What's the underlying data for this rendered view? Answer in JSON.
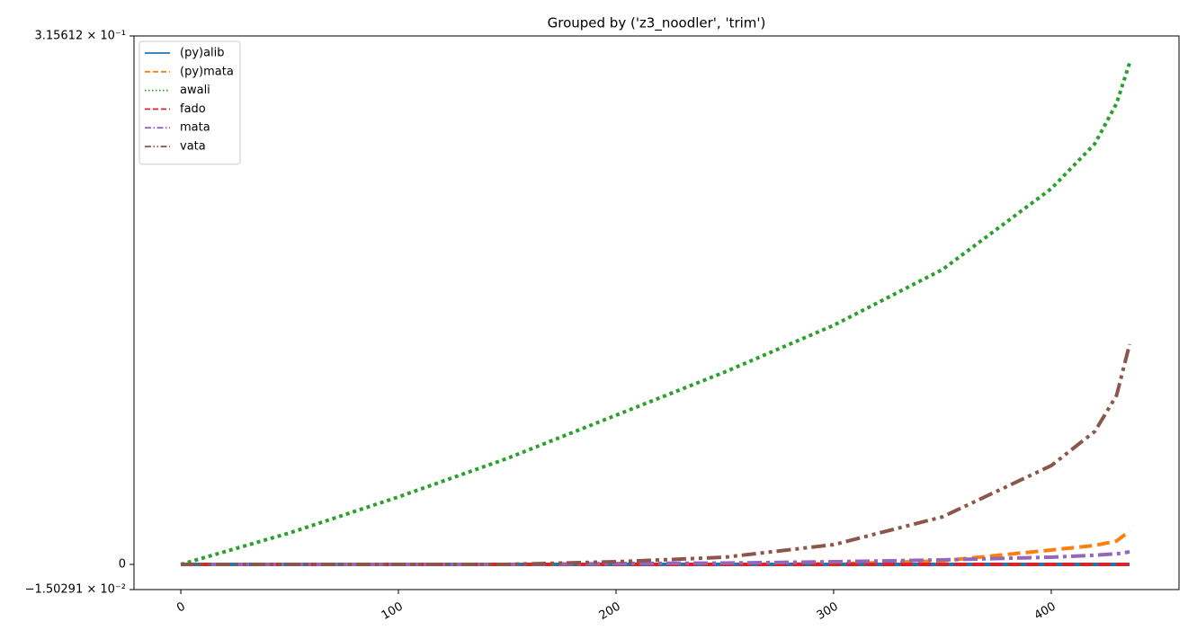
{
  "chart_data": {
    "type": "line",
    "title": "Grouped by ('z3_noodler', 'trim')",
    "x": [
      0,
      50,
      100,
      150,
      200,
      250,
      300,
      350,
      400,
      420,
      430,
      436
    ],
    "series": [
      {
        "name": "(py)alib",
        "color": "#1f77b4",
        "linestyle": "solid",
        "values": [
          0,
          0,
          0,
          0,
          0,
          0,
          0,
          0,
          0,
          0,
          0,
          0
        ]
      },
      {
        "name": "(py)mata",
        "color": "#ff7f0e",
        "linestyle": "dashed",
        "values": [
          0,
          0,
          0,
          0,
          0,
          0,
          0.0003,
          0.0021,
          0.0086,
          0.0113,
          0.014,
          0.0199
        ]
      },
      {
        "name": "awali",
        "color": "#2ca02c",
        "linestyle": "dotted",
        "values": [
          0,
          0.0188,
          0.0403,
          0.0633,
          0.0891,
          0.1149,
          0.1428,
          0.1761,
          0.2244,
          0.2512,
          0.2753,
          0.2995
        ]
      },
      {
        "name": "fado",
        "color": "#d62728",
        "linestyle": "dashed",
        "values": [
          0,
          0,
          0,
          0,
          0,
          0,
          0,
          0,
          0,
          0,
          0,
          0
        ]
      },
      {
        "name": "mata",
        "color": "#9467bd",
        "linestyle": "dashdot",
        "values": [
          0,
          0,
          0,
          0,
          0.0005,
          0.0008,
          0.0016,
          0.0027,
          0.0043,
          0.0055,
          0.0063,
          0.0075
        ]
      },
      {
        "name": "vata",
        "color": "#8c564b",
        "linestyle": "dashdotdot",
        "values": [
          0,
          0,
          0,
          0,
          0.0016,
          0.0043,
          0.0118,
          0.0284,
          0.059,
          0.0794,
          0.1009,
          0.1315
        ]
      }
    ],
    "xlim": [
      -21.5,
      458.7
    ],
    "xticks": [
      0,
      100,
      200,
      300,
      400
    ],
    "ylim": [
      -0.0150291,
      0.315612
    ],
    "yticks": [
      {
        "value": -0.0150291,
        "label": "−1.50291 × 10⁻²"
      },
      0,
      {
        "value": 0.315612,
        "label": "3.15612 × 10⁻¹"
      }
    ],
    "legend": "upper left"
  }
}
